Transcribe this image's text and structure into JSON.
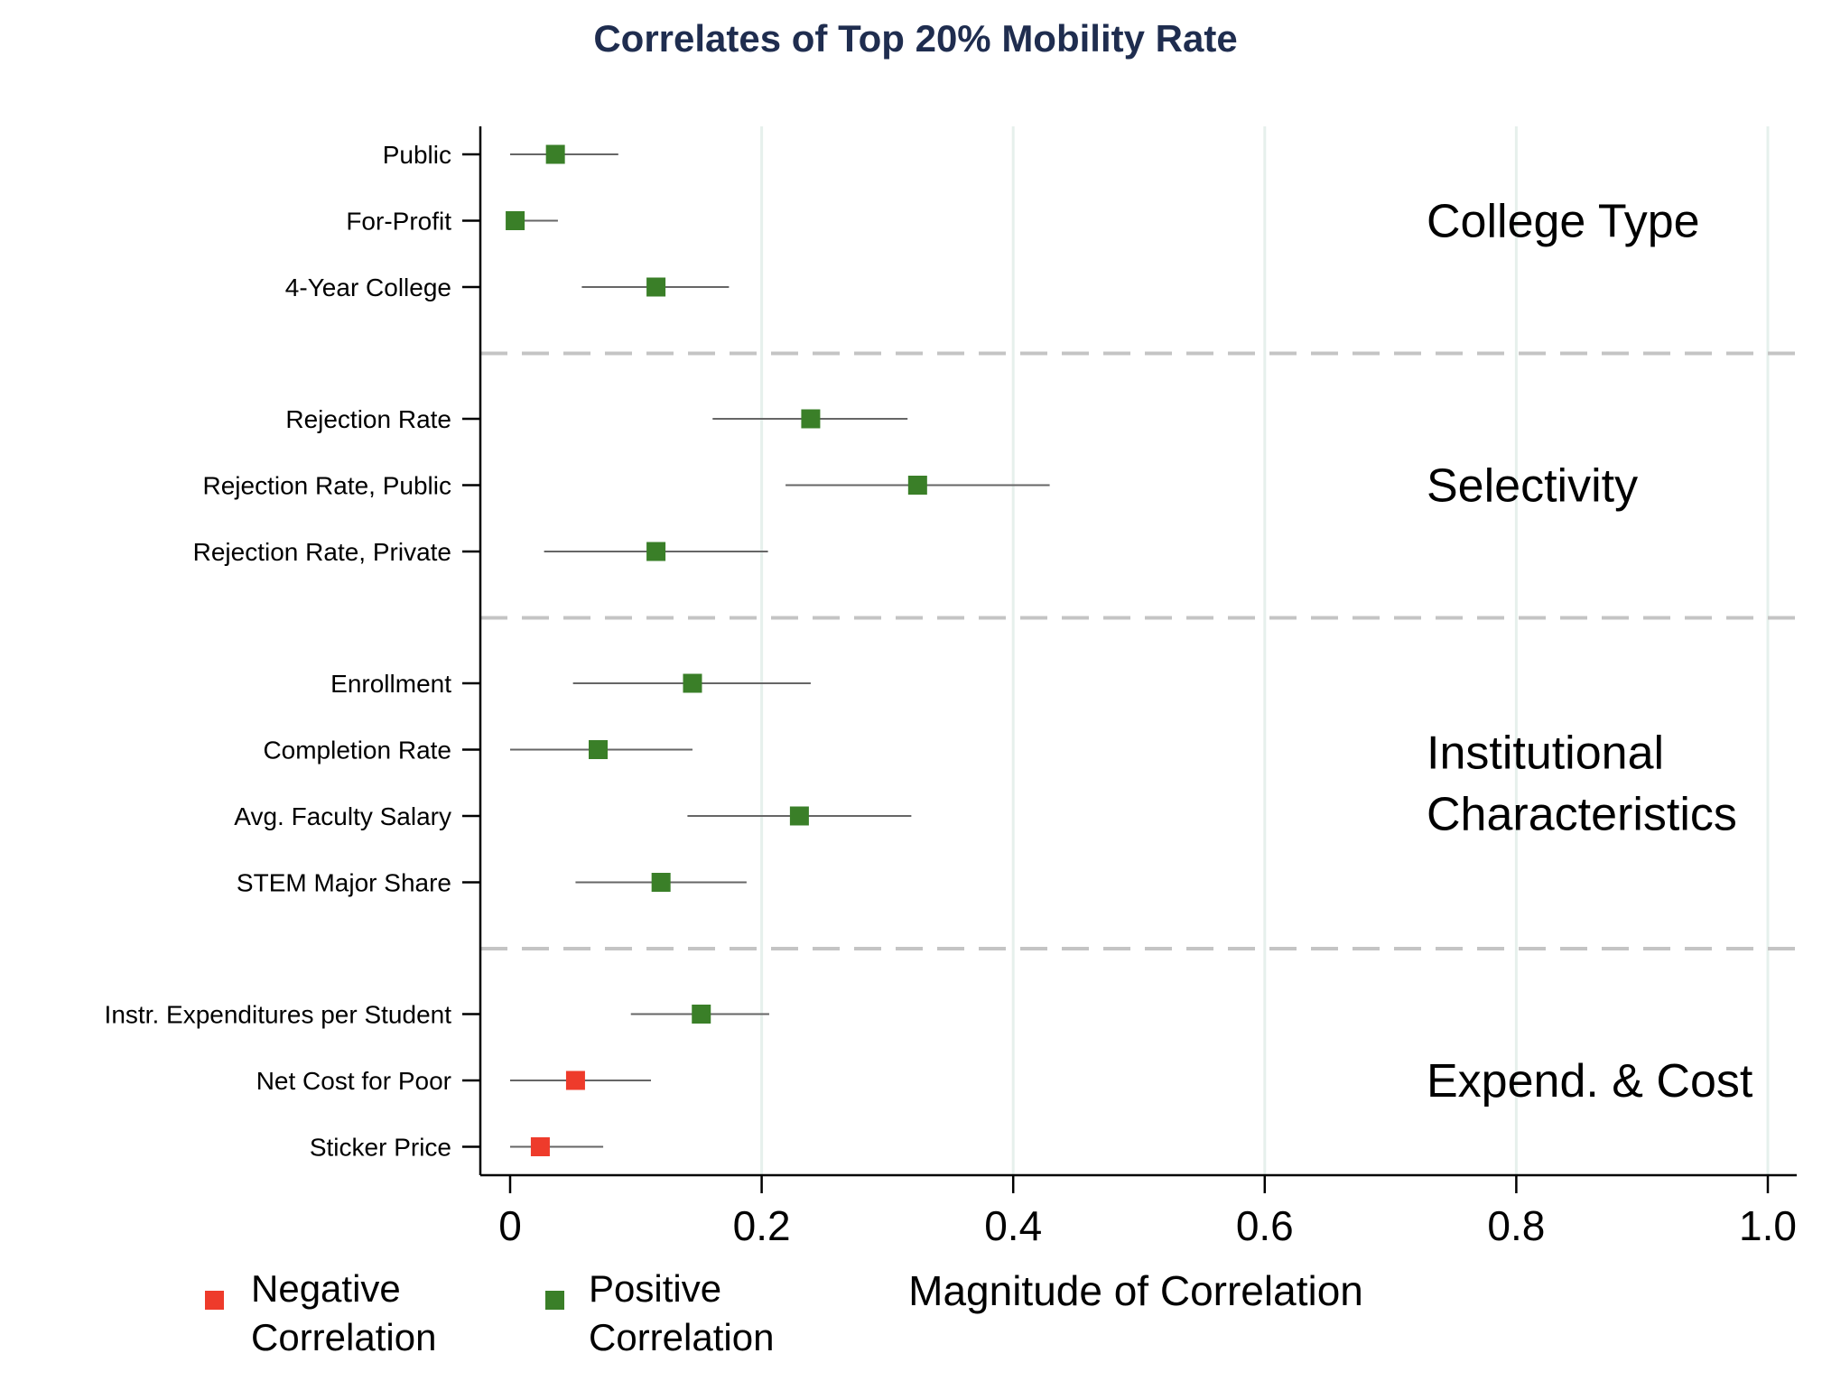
{
  "chart_data": {
    "type": "scatter",
    "title": "Correlates of Top 20% Mobility Rate",
    "xlabel": "Magnitude of Correlation",
    "ylabel": "",
    "xlim": [
      0,
      1.0
    ],
    "xticks": [
      "0",
      "0.2",
      "0.4",
      "0.6",
      "0.8",
      "1.0"
    ],
    "xtick_values": [
      0,
      0.2,
      0.4,
      0.6,
      0.8,
      1.0
    ],
    "grid": "vertical",
    "legend": {
      "placement": "bottom-left",
      "entries": [
        {
          "key": "negative",
          "label_line1": "Negative",
          "label_line2": "Correlation",
          "color": "#ee3b2b"
        },
        {
          "key": "positive",
          "label_line1": "Positive",
          "label_line2": "Correlation",
          "color": "#3a7f28"
        }
      ]
    },
    "groups": [
      {
        "name": "College Type",
        "label_lines": [
          "College Type"
        ],
        "items": [
          {
            "label": "Public",
            "value": 0.036,
            "low": 0.0,
            "high": 0.086,
            "sign": "positive"
          },
          {
            "label": "For-Profit",
            "value": 0.004,
            "low": 0.0,
            "high": 0.038,
            "sign": "positive"
          },
          {
            "label": "4-Year College",
            "value": 0.116,
            "low": 0.057,
            "high": 0.174,
            "sign": "positive"
          }
        ]
      },
      {
        "name": "Selectivity",
        "label_lines": [
          "Selectivity"
        ],
        "items": [
          {
            "label": "Rejection Rate",
            "value": 0.239,
            "low": 0.161,
            "high": 0.316,
            "sign": "positive"
          },
          {
            "label": "Rejection Rate, Public",
            "value": 0.324,
            "low": 0.219,
            "high": 0.429,
            "sign": "positive"
          },
          {
            "label": "Rejection Rate, Private",
            "value": 0.116,
            "low": 0.027,
            "high": 0.205,
            "sign": "positive"
          }
        ]
      },
      {
        "name": "Institutional Characteristics",
        "label_lines": [
          "Institutional",
          "Characteristics"
        ],
        "items": [
          {
            "label": "Enrollment",
            "value": 0.145,
            "low": 0.05,
            "high": 0.239,
            "sign": "positive"
          },
          {
            "label": "Completion Rate",
            "value": 0.07,
            "low": 0.0,
            "high": 0.145,
            "sign": "positive"
          },
          {
            "label": "Avg. Faculty Salary",
            "value": 0.23,
            "low": 0.141,
            "high": 0.319,
            "sign": "positive"
          },
          {
            "label": "STEM Major Share",
            "value": 0.12,
            "low": 0.052,
            "high": 0.188,
            "sign": "positive"
          }
        ]
      },
      {
        "name": "Expend. & Cost",
        "label_lines": [
          "Expend. & Cost"
        ],
        "items": [
          {
            "label": "Instr. Expenditures per Student",
            "value": 0.152,
            "low": 0.096,
            "high": 0.206,
            "sign": "positive"
          },
          {
            "label": "Net Cost for Poor",
            "value": 0.052,
            "low": 0.0,
            "high": 0.112,
            "sign": "negative"
          },
          {
            "label": "Sticker Price",
            "value": 0.024,
            "low": 0.0,
            "high": 0.074,
            "sign": "negative"
          }
        ]
      }
    ]
  },
  "colors": {
    "title": "#1f2d4f",
    "positive": "#3a7f28",
    "negative": "#ee3b2b",
    "grid": "#e6f0ec",
    "divider": "#c4c4c4",
    "ci_line": "#666666",
    "axis": "#000000"
  }
}
